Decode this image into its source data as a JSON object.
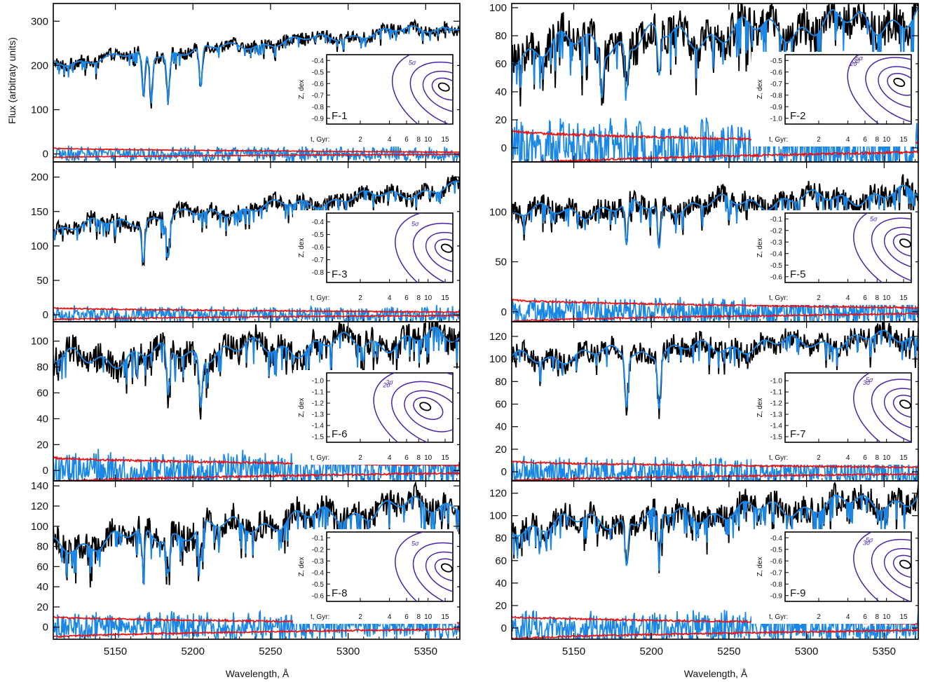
{
  "figure": {
    "ylabel": "Flux (arbitraty units)",
    "xlabel": "Wavelength, Å"
  },
  "colors": {
    "observed": "#000000",
    "model": "#1a87e6",
    "residual": "#1a87e6",
    "noise_envelope": "#ee1111",
    "contour": "#4b22a8",
    "contour_best": "#000000"
  },
  "chart_data": [
    {
      "type": "line",
      "panel": "F-1",
      "column": "left",
      "series": [
        {
          "values_approx": {
            "kind": "observed spectrum",
            "start": 205,
            "end": 290,
            "noise": 18
          }
        },
        {
          "values_approx": {
            "kind": "model spectrum"
          }
        },
        {
          "values_approx": {
            "kind": "residuals",
            "amplitude": 20
          }
        },
        {
          "values_approx": {
            "kind": "noise envelope",
            "upper": [
              13,
              4
            ],
            "lower": [
              -8,
              -1
            ]
          }
        }
      ],
      "xlim": [
        5110,
        5372
      ],
      "xticks": [
        "5150",
        "5200",
        "5250",
        "5300",
        "5350"
      ],
      "ylim": [
        -18,
        340
      ],
      "yticks": [
        {
          "v": 0,
          "t": "0"
        },
        {
          "v": 100,
          "t": "100"
        },
        {
          "v": 200,
          "t": "200"
        },
        {
          "v": 300,
          "t": "300"
        }
      ],
      "absorption_lines": [
        5168,
        5173,
        5184,
        5205
      ],
      "inset": {
        "label": "F-1",
        "x_label": "t, Gyr:",
        "y_label": "Z, dex",
        "x_ticks": [
          "2",
          "4",
          "6",
          "8",
          "10",
          "15"
        ],
        "y_ticks": [
          "-0.4",
          "-0.5",
          "-0.6",
          "-0.7",
          "-0.8",
          "-0.9"
        ],
        "z_range": [
          -0.95,
          -0.35
        ],
        "best_fit": {
          "age_gyr": 14,
          "z": -0.62
        },
        "contour_labels": [
          "5σ"
        ]
      }
    },
    {
      "type": "line",
      "panel": "F-2",
      "column": "right",
      "series": [
        {
          "values_approx": {
            "kind": "observed spectrum",
            "start": 70,
            "end": 93,
            "noise": 18
          }
        },
        {
          "values_approx": {
            "kind": "model spectrum"
          }
        },
        {
          "values_approx": {
            "kind": "residuals",
            "amplitude": 24
          }
        },
        {
          "values_approx": {
            "kind": "noise envelope",
            "upper": [
              12,
              4
            ],
            "lower": [
              -12,
              -3
            ]
          }
        }
      ],
      "xlim": [
        5110,
        5372
      ],
      "xticks": [
        "5150",
        "5200",
        "5250",
        "5300",
        "5350"
      ],
      "ylim": [
        -10,
        103
      ],
      "yticks": [
        {
          "v": 0,
          "t": "0"
        },
        {
          "v": 20,
          "t": "20"
        },
        {
          "v": 40,
          "t": "40"
        },
        {
          "v": 60,
          "t": "60"
        },
        {
          "v": 80,
          "t": "80"
        },
        {
          "v": 100,
          "t": "100"
        }
      ],
      "absorption_lines": [
        5168,
        5184,
        5205
      ],
      "inset": {
        "label": "F-2",
        "x_label": "t, Gyr:",
        "y_label": "Z, dex",
        "x_ticks": [
          "2",
          "4",
          "6",
          "8",
          "10",
          "15"
        ],
        "y_ticks": [
          "-0.5",
          "-0.6",
          "-0.7",
          "-0.8",
          "-0.9",
          "-1.0"
        ],
        "z_range": [
          -1.05,
          -0.45
        ],
        "best_fit": {
          "age_gyr": 13,
          "z": -0.68
        },
        "contour_labels": [
          "5σ",
          "3σ",
          "2σ"
        ]
      }
    },
    {
      "type": "line",
      "panel": "F-3",
      "column": "left",
      "series": [
        {
          "values_approx": {
            "kind": "observed spectrum",
            "start": 125,
            "end": 185,
            "noise": 15
          }
        },
        {
          "values_approx": {
            "kind": "model spectrum"
          }
        },
        {
          "values_approx": {
            "kind": "residuals",
            "amplitude": 15
          }
        },
        {
          "values_approx": {
            "kind": "noise envelope",
            "upper": [
              10,
              4
            ],
            "lower": [
              -7,
              -1
            ]
          }
        }
      ],
      "xlim": [
        5110,
        5372
      ],
      "xticks": [
        "5150",
        "5200",
        "5250",
        "5300",
        "5350"
      ],
      "ylim": [
        -10,
        222
      ],
      "yticks": [
        {
          "v": 0,
          "t": "0"
        },
        {
          "v": 50,
          "t": "50"
        },
        {
          "v": 100,
          "t": "100"
        },
        {
          "v": 150,
          "t": "150"
        },
        {
          "v": 200,
          "t": "200"
        }
      ],
      "absorption_lines": [
        5168,
        5184
      ],
      "inset": {
        "label": "F-3",
        "x_label": "t, Gyr:",
        "y_label": "Z, dex",
        "x_ticks": [
          "2",
          "4",
          "6",
          "8",
          "10",
          "15"
        ],
        "y_ticks": [
          "-0.4",
          "-0.5",
          "-0.6",
          "-0.7",
          "-0.8"
        ],
        "z_range": [
          -0.88,
          -0.33
        ],
        "best_fit": {
          "age_gyr": 15,
          "z": -0.6
        },
        "contour_labels": [
          "5σ"
        ]
      }
    },
    {
      "type": "line",
      "panel": "F-5",
      "column": "right",
      "series": [
        {
          "values_approx": {
            "kind": "observed spectrum",
            "start": 98,
            "end": 118,
            "noise": 14
          }
        },
        {
          "values_approx": {
            "kind": "model spectrum"
          }
        },
        {
          "values_approx": {
            "kind": "residuals",
            "amplitude": 17
          }
        },
        {
          "values_approx": {
            "kind": "noise envelope",
            "upper": [
              12,
              4
            ],
            "lower": [
              -10,
              -2
            ]
          }
        }
      ],
      "xlim": [
        5110,
        5372
      ],
      "xticks": [
        "5150",
        "5200",
        "5250",
        "5300",
        "5350"
      ],
      "ylim": [
        -10,
        150
      ],
      "yticks": [
        {
          "v": 0,
          "t": "0"
        },
        {
          "v": 50,
          "t": "50"
        },
        {
          "v": 100,
          "t": "100"
        }
      ],
      "absorption_lines": [
        5184,
        5205
      ],
      "inset": {
        "label": "F-5",
        "x_label": "t, Gyr:",
        "y_label": "Z, dex",
        "x_ticks": [
          "2",
          "4",
          "6",
          "8",
          "10",
          "15"
        ],
        "y_ticks": [
          "-0.1",
          "-0.2",
          "-0.3",
          "-0.4",
          "-0.5",
          "-0.6"
        ],
        "z_range": [
          -0.65,
          -0.05
        ],
        "best_fit": {
          "age_gyr": 15,
          "z": -0.3
        },
        "contour_labels": [
          "5σ"
        ]
      }
    },
    {
      "type": "line",
      "panel": "F-6",
      "column": "left",
      "series": [
        {
          "values_approx": {
            "kind": "observed spectrum",
            "start": 85,
            "end": 103,
            "noise": 14
          }
        },
        {
          "values_approx": {
            "kind": "model spectrum"
          }
        },
        {
          "values_approx": {
            "kind": "residuals",
            "amplitude": 18
          }
        },
        {
          "values_approx": {
            "kind": "noise envelope",
            "upper": [
              10,
              4
            ],
            "lower": [
              -9,
              -2
            ]
          }
        }
      ],
      "xlim": [
        5110,
        5372
      ],
      "xticks": [
        "5150",
        "5200",
        "5250",
        "5300",
        "5350"
      ],
      "ylim": [
        -8,
        115
      ],
      "yticks": [
        {
          "v": 0,
          "t": "0"
        },
        {
          "v": 20,
          "t": "20"
        },
        {
          "v": 40,
          "t": "40"
        },
        {
          "v": 60,
          "t": "60"
        },
        {
          "v": 80,
          "t": "80"
        },
        {
          "v": 100,
          "t": "100"
        }
      ],
      "absorption_lines": [
        5184,
        5205
      ],
      "inset": {
        "label": "F-6",
        "x_label": "t, Gyr:",
        "y_label": "Z, dex",
        "x_ticks": [
          "2",
          "4",
          "6",
          "8",
          "10",
          "15"
        ],
        "y_ticks": [
          "-1.0",
          "-1.1",
          "-1.2",
          "-1.3",
          "-1.4",
          "-1.5"
        ],
        "z_range": [
          -1.55,
          -0.93
        ],
        "best_fit": {
          "age_gyr": 9,
          "z": -1.22
        },
        "contour_labels": [
          "3σ",
          "2σ"
        ]
      }
    },
    {
      "type": "line",
      "panel": "F-7",
      "column": "right",
      "series": [
        {
          "values_approx": {
            "kind": "observed spectrum",
            "start": 100,
            "end": 120,
            "noise": 12
          }
        },
        {
          "values_approx": {
            "kind": "model spectrum"
          }
        },
        {
          "values_approx": {
            "kind": "residuals",
            "amplitude": 16
          }
        },
        {
          "values_approx": {
            "kind": "noise envelope",
            "upper": [
              9,
              4
            ],
            "lower": [
              -8,
              -2
            ]
          }
        }
      ],
      "xlim": [
        5110,
        5372
      ],
      "xticks": [
        "5150",
        "5200",
        "5250",
        "5300",
        "5350"
      ],
      "ylim": [
        -8,
        133
      ],
      "yticks": [
        {
          "v": 0,
          "t": "0"
        },
        {
          "v": 20,
          "t": "20"
        },
        {
          "v": 40,
          "t": "40"
        },
        {
          "v": 60,
          "t": "60"
        },
        {
          "v": 80,
          "t": "80"
        },
        {
          "v": 100,
          "t": "100"
        },
        {
          "v": 120,
          "t": "120"
        }
      ],
      "absorption_lines": [
        5184,
        5205
      ],
      "inset": {
        "label": "F-7",
        "x_label": "t, Gyr:",
        "y_label": "Z, dex",
        "x_ticks": [
          "2",
          "4",
          "6",
          "8",
          "10",
          "15"
        ],
        "y_ticks": [
          "-1.0",
          "-1.1",
          "-1.2",
          "-1.3",
          "-1.4",
          "-1.5"
        ],
        "z_range": [
          -1.55,
          -0.93
        ],
        "best_fit": {
          "age_gyr": 15,
          "z": -1.2
        },
        "contour_labels": [
          "5σ",
          "3σ"
        ]
      }
    },
    {
      "type": "line",
      "panel": "F-8",
      "column": "left",
      "series": [
        {
          "values_approx": {
            "kind": "observed spectrum",
            "start": 80,
            "end": 125,
            "noise": 18
          }
        },
        {
          "values_approx": {
            "kind": "model spectrum"
          }
        },
        {
          "values_approx": {
            "kind": "residuals",
            "amplitude": 17
          }
        },
        {
          "values_approx": {
            "kind": "noise envelope",
            "upper": [
              10,
              4
            ],
            "lower": [
              -10,
              -2
            ]
          }
        }
      ],
      "xlim": [
        5110,
        5372
      ],
      "xticks": [
        "5150",
        "5200",
        "5250",
        "5300",
        "5350"
      ],
      "ylim": [
        -12,
        145
      ],
      "yticks": [
        {
          "v": 0,
          "t": "0"
        },
        {
          "v": 20,
          "t": "20"
        },
        {
          "v": 40,
          "t": "40"
        },
        {
          "v": 60,
          "t": "60"
        },
        {
          "v": 80,
          "t": "80"
        },
        {
          "v": 100,
          "t": "100"
        },
        {
          "v": 120,
          "t": "120"
        },
        {
          "v": 140,
          "t": "140"
        }
      ],
      "absorption_lines": [
        5168,
        5184,
        5205
      ],
      "inset": {
        "label": "F-8",
        "x_label": "t, Gyr:",
        "y_label": "Z, dex",
        "x_ticks": [
          "2",
          "4",
          "6",
          "8",
          "10",
          "15"
        ],
        "y_ticks": [
          "-0.1",
          "-0.2",
          "-0.3",
          "-0.4",
          "-0.5",
          "-0.6"
        ],
        "z_range": [
          -0.65,
          -0.05
        ],
        "best_fit": {
          "age_gyr": 15,
          "z": -0.35
        },
        "contour_labels": [
          "5σ"
        ]
      }
    },
    {
      "type": "line",
      "panel": "F-9",
      "column": "right",
      "series": [
        {
          "values_approx": {
            "kind": "observed spectrum",
            "start": 90,
            "end": 115,
            "noise": 15
          }
        },
        {
          "values_approx": {
            "kind": "model spectrum"
          }
        },
        {
          "values_approx": {
            "kind": "residuals",
            "amplitude": 18
          }
        },
        {
          "values_approx": {
            "kind": "noise envelope",
            "upper": [
              10,
              4
            ],
            "lower": [
              -10,
              -2
            ]
          }
        }
      ],
      "xlim": [
        5110,
        5372
      ],
      "xticks": [
        "5150",
        "5200",
        "5250",
        "5300",
        "5350"
      ],
      "ylim": [
        -10,
        131
      ],
      "yticks": [
        {
          "v": 0,
          "t": "0"
        },
        {
          "v": 20,
          "t": "20"
        },
        {
          "v": 40,
          "t": "40"
        },
        {
          "v": 60,
          "t": "60"
        },
        {
          "v": 80,
          "t": "80"
        },
        {
          "v": 100,
          "t": "100"
        },
        {
          "v": 120,
          "t": "120"
        }
      ],
      "absorption_lines": [
        5184,
        5205
      ],
      "inset": {
        "label": "F-9",
        "x_label": "t, Gyr:",
        "y_label": "Z, dex",
        "x_ticks": [
          "2",
          "4",
          "6",
          "8",
          "10",
          "15"
        ],
        "y_ticks": [
          "-0.4",
          "-0.5",
          "-0.6",
          "-0.7",
          "-0.8",
          "-0.9"
        ],
        "z_range": [
          -0.95,
          -0.35
        ],
        "best_fit": {
          "age_gyr": 15,
          "z": -0.62
        },
        "contour_labels": [
          "5σ",
          "3σ"
        ]
      }
    }
  ]
}
